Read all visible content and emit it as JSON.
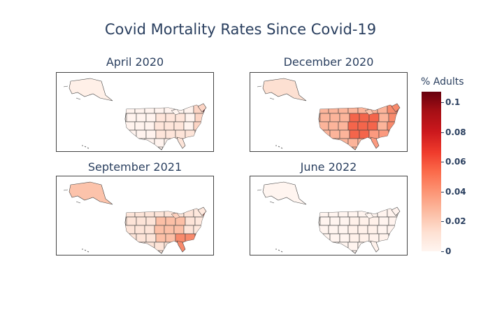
{
  "title": "Covid Mortality Rates Since Covid-19",
  "panels": [
    {
      "title": "April 2020",
      "fills": {
        "ak": "#fff0e8",
        "lower": "#fff3ee",
        "mid": "#fee5da",
        "ne": "#fcd4c4",
        "hot": "#67000d",
        "south": "#fde4d8",
        "lake": "#fff5f0"
      }
    },
    {
      "title": "December 2020",
      "fills": {
        "ak": "#fde0d2",
        "lower": "#fcb49a",
        "mid": "#f4654b",
        "ne": "#f88a6c",
        "hot": "#e8412f",
        "south": "#fb9a7f",
        "lake": "#fcc3ab"
      }
    },
    {
      "title": "September 2021",
      "fills": {
        "ak": "#fcc3ab",
        "lower": "#fde4d8",
        "mid": "#fcbfa6",
        "ne": "#fee8dd",
        "hot": "#f4694d",
        "south": "#f88a6c",
        "lake": "#fdd0bd"
      }
    },
    {
      "title": "June 2022",
      "fills": {
        "ak": "#fff5f0",
        "lower": "#fff4ef",
        "mid": "#fff1ea",
        "ne": "#fff3ee",
        "hot": "#feeee6",
        "south": "#fff2ec",
        "lake": "#fff5f0"
      }
    }
  ],
  "colorbar": {
    "title": "% Adults",
    "ticks": [
      "0",
      "0.02",
      "0.04",
      "0.06",
      "0.08",
      "0.1"
    ],
    "tick_values": [
      0,
      0.02,
      0.04,
      0.06,
      0.08,
      0.1
    ],
    "max": 0.107,
    "colorscale": "Reds"
  }
}
